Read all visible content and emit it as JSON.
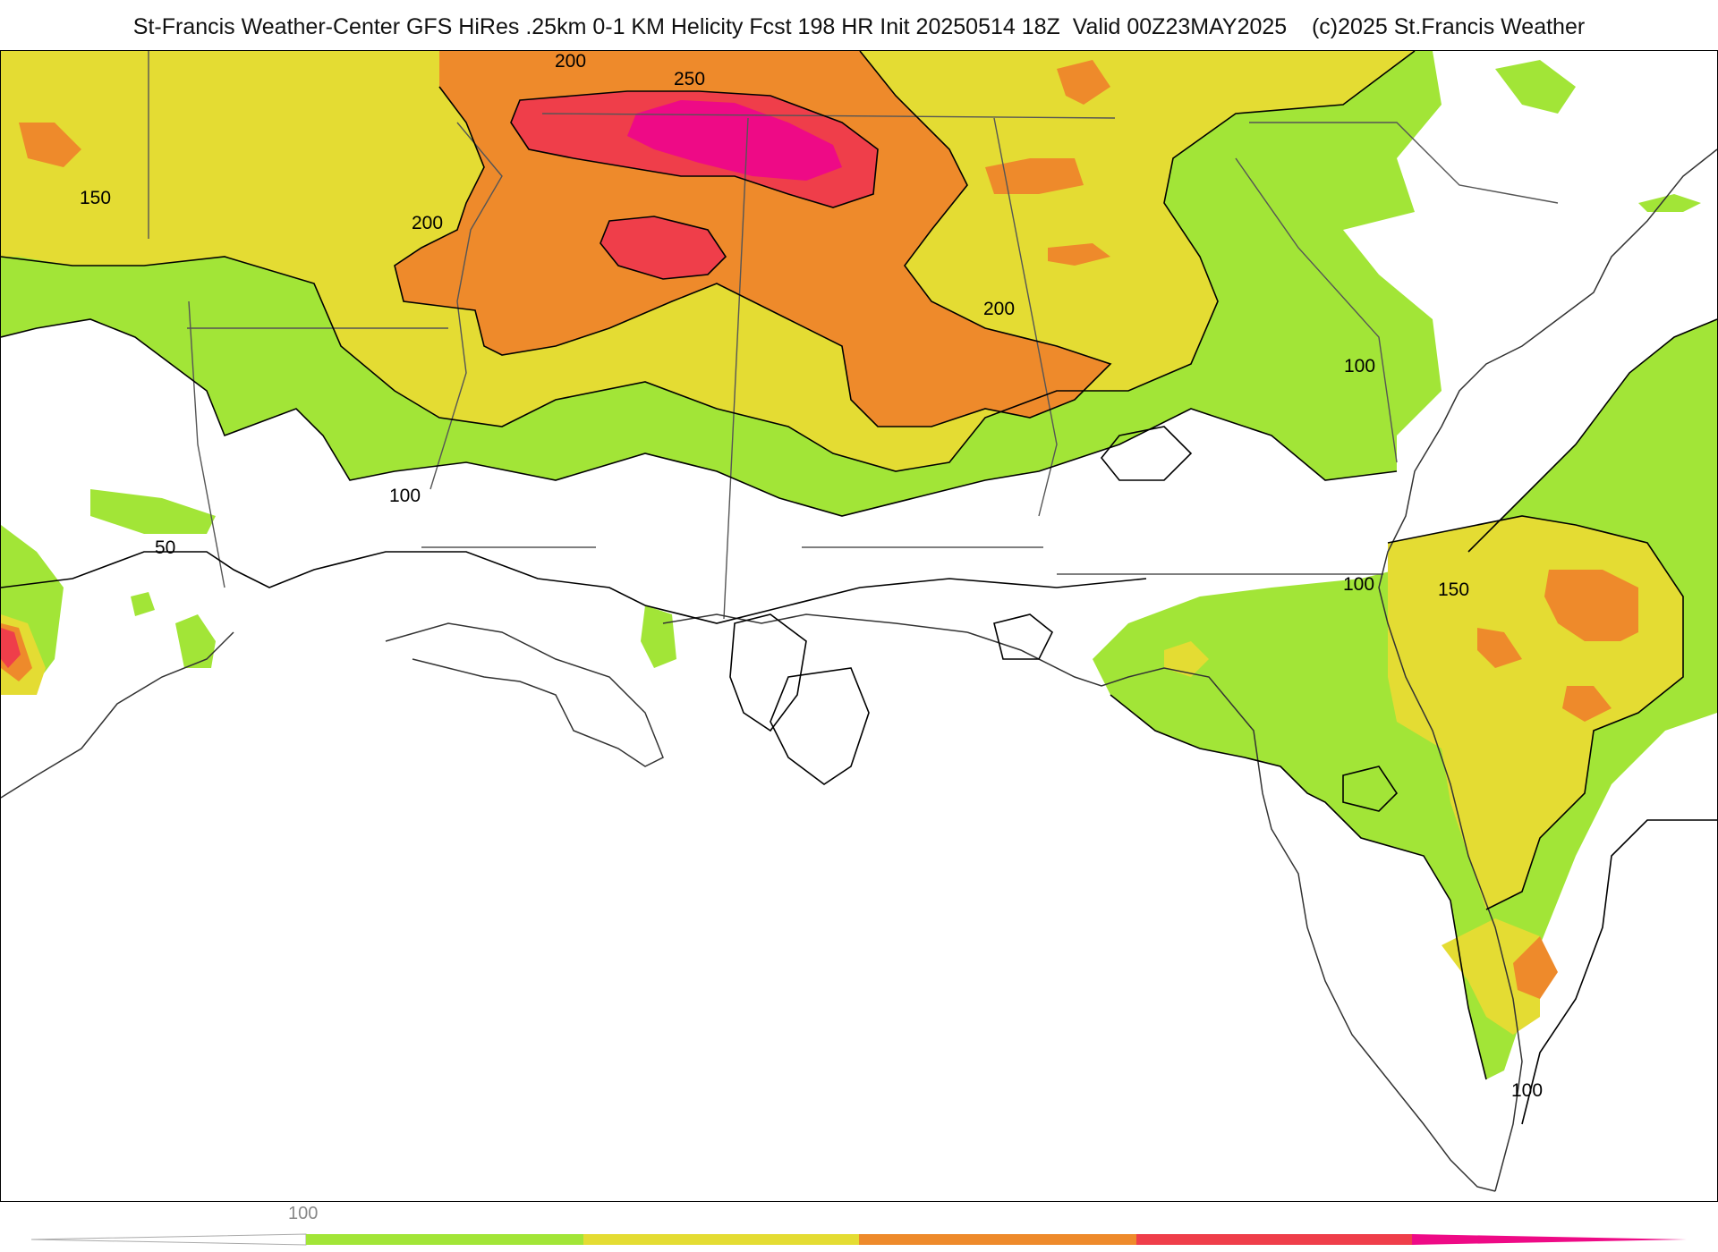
{
  "header": {
    "title": "St-Francis Weather-Center GFS HiRes .25km 0-1 KM Helicity Fcst 198 HR Init 20250514 18Z  Valid 00Z23MAY2025    (c)2025 St.Francis Weather"
  },
  "contour_labels": {
    "l200_top": "200",
    "l250": "250",
    "l150_left": "150",
    "l200_left": "200",
    "l200_right": "200",
    "l100_east": "100",
    "l100_west": "100",
    "l50": "50",
    "l100_ga": "100",
    "l150_atl": "150",
    "l100_fl": "100"
  },
  "colorbar": {
    "tick_label": "100",
    "fill_colors": [
      "#a2e537",
      "#e4dc33",
      "#ee8a2b",
      "#ef3e4a",
      "#ee0a86"
    ]
  },
  "colors": {
    "c100": "#a2e537",
    "c150": "#e4dc33",
    "c200": "#ee8a2b",
    "c250": "#ef3e4a",
    "c300": "#ee0a86"
  }
}
